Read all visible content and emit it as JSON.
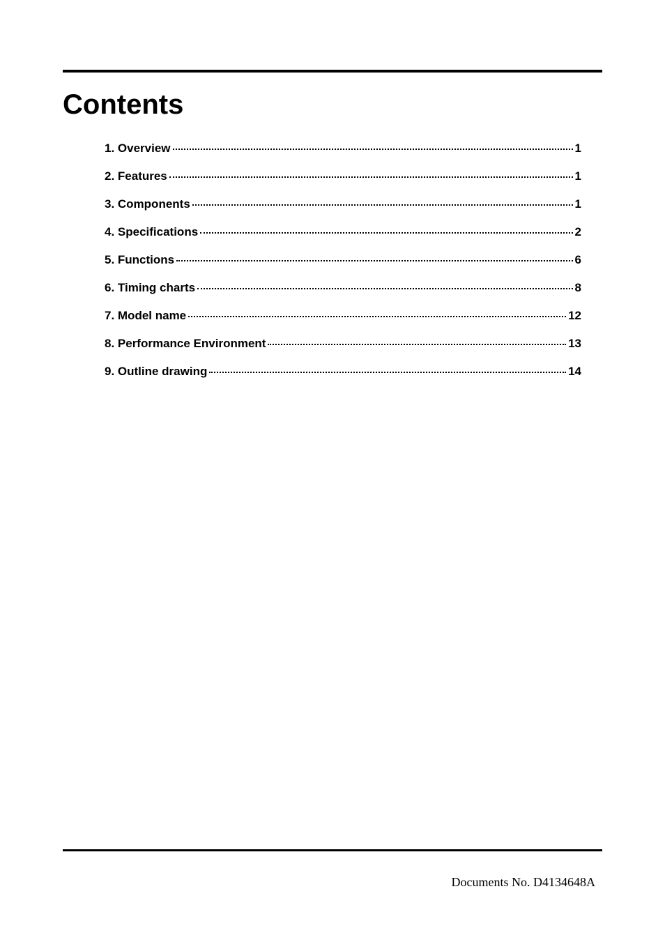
{
  "title": "Contents",
  "toc": {
    "entries": [
      {
        "label": "1. Overview",
        "page": "1"
      },
      {
        "label": "2. Features",
        "page": "1"
      },
      {
        "label": "3. Components",
        "page": "1"
      },
      {
        "label": "4. Specifications",
        "page": "2"
      },
      {
        "label": "5. Functions",
        "page": "6"
      },
      {
        "label": "6. Timing charts",
        "page": "8"
      },
      {
        "label": "7. Model name",
        "page": "12"
      },
      {
        "label": "8. Performance Environment",
        "page": "13"
      },
      {
        "label": "9. Outline drawing",
        "page": "14"
      }
    ]
  },
  "footer": "Documents No. D4134648A",
  "colors": {
    "text": "#000000",
    "background": "#ffffff",
    "rule": "#000000"
  },
  "typography": {
    "title_fontsize": 40,
    "title_weight": "bold",
    "toc_fontsize": 17,
    "toc_weight": "bold",
    "footer_fontsize": 18,
    "footer_family": "Times New Roman"
  }
}
